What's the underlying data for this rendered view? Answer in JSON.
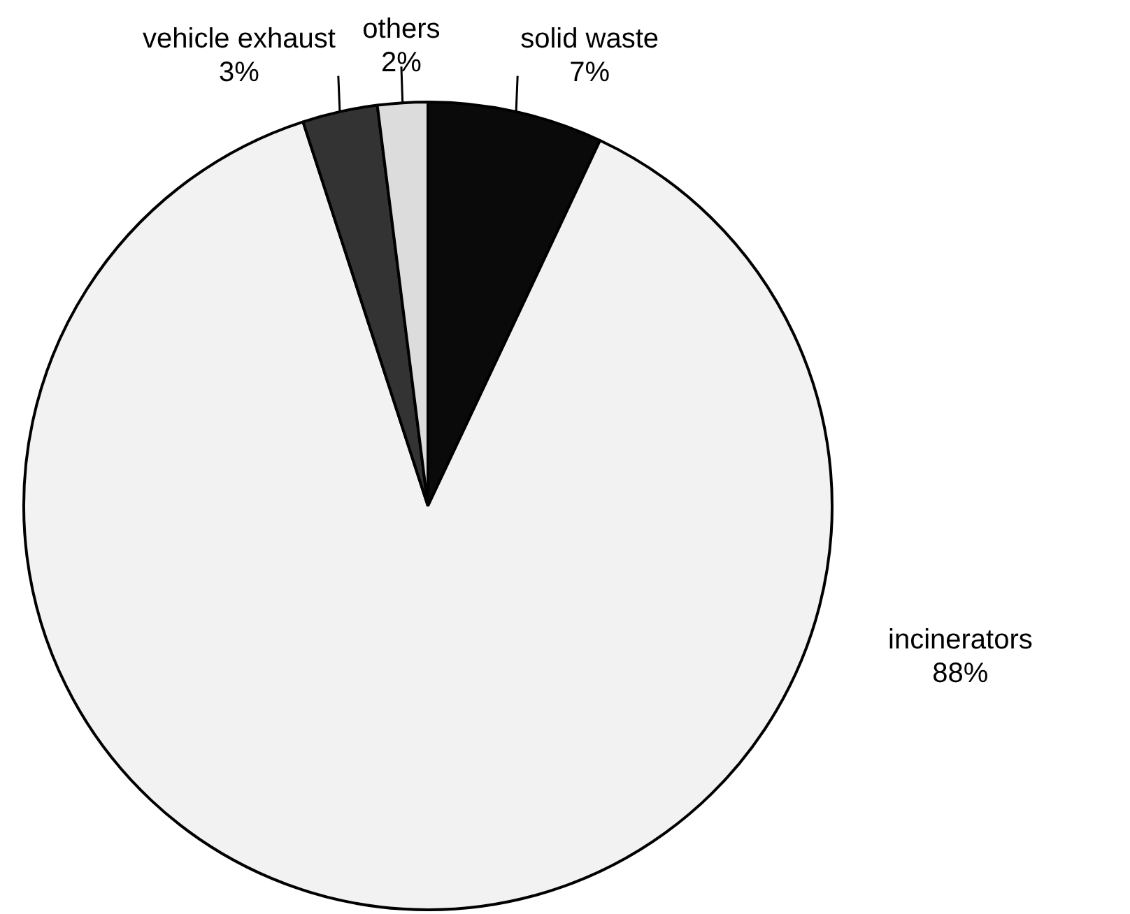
{
  "chart_data": {
    "type": "pie",
    "categories": [
      "solid waste",
      "incinerators",
      "vehicle exhaust",
      "others"
    ],
    "values": [
      7,
      88,
      3,
      2
    ],
    "colors": [
      "#0a0a0a",
      "#f2f2f2",
      "#333333",
      "#dcdcdc"
    ],
    "value_labels": [
      "7%",
      "88%",
      "3%",
      "2%"
    ],
    "legend": false
  }
}
